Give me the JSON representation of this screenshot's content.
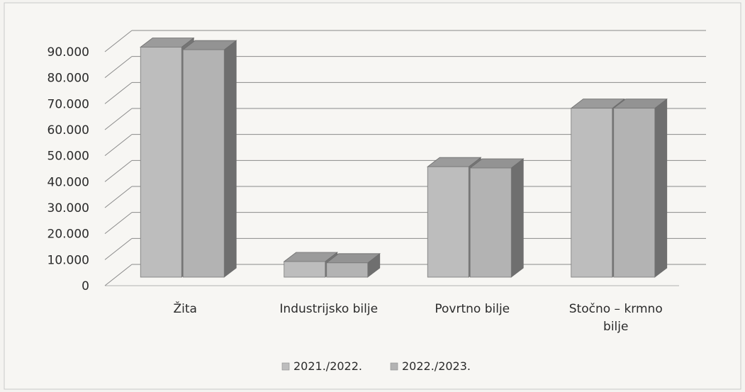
{
  "chart_data": {
    "type": "bar",
    "title": "",
    "xlabel": "",
    "ylabel": "",
    "ylim": [
      0,
      90000
    ],
    "y_ticks": [
      "0",
      "10.000",
      "20.000",
      "30.000",
      "40.000",
      "50.000",
      "60.000",
      "70.000",
      "80.000",
      "90.000"
    ],
    "categories": [
      {
        "lines": [
          "Žita"
        ]
      },
      {
        "lines": [
          "Industrijsko bilje"
        ]
      },
      {
        "lines": [
          "Povrtno bilje"
        ]
      },
      {
        "lines": [
          "Stočno – krmno",
          "bilje"
        ]
      }
    ],
    "series": [
      {
        "name": "2021./2022.",
        "values": [
          88500,
          6000,
          42500,
          65000
        ],
        "color": "#bdbdbd"
      },
      {
        "name": "2022./2023.",
        "values": [
          87500,
          5500,
          42000,
          65000
        ],
        "color": "#b3b3b3"
      }
    ],
    "grid": true,
    "style": "3d-bar",
    "legend_position": "bottom"
  }
}
